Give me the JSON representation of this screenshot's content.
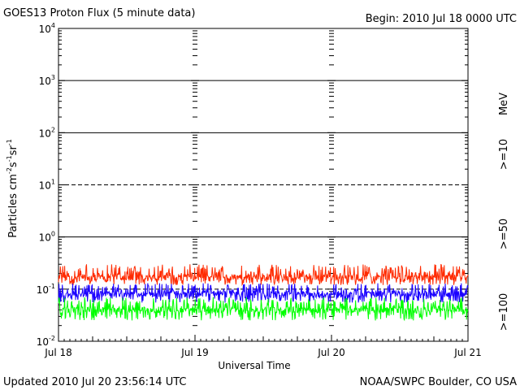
{
  "chart_data": {
    "type": "line",
    "title": "GOES13 Proton Flux (5 minute data)",
    "begin_label": "Begin: 2010 Jul 18 0000 UTC",
    "xlabel": "Universal Time",
    "ylabel": "Particles cm",
    "ylabel_sup1": "-2",
    "ylabel_mid1": "s",
    "ylabel_sup2": "-1",
    "ylabel_mid2": "sr",
    "ylabel_sup3": "-1",
    "y_scale": "log",
    "ylim": [
      0.01,
      10000
    ],
    "y_tick_labels": [
      {
        "value": 0.01,
        "base": "10",
        "exp": "-2"
      },
      {
        "value": 0.1,
        "base": "10",
        "exp": "-1"
      },
      {
        "value": 1,
        "base": "10",
        "exp": "0"
      },
      {
        "value": 10,
        "base": "10",
        "exp": "1"
      },
      {
        "value": 100,
        "base": "10",
        "exp": "2"
      },
      {
        "value": 1000,
        "base": "10",
        "exp": "3"
      },
      {
        "value": 10000,
        "base": "10",
        "exp": "4"
      }
    ],
    "x_tick_labels": [
      "Jul 18",
      "Jul 19",
      "Jul 20",
      "Jul 21"
    ],
    "xlim_days": [
      0,
      3
    ],
    "threshold_lines": [
      {
        "value": 1000,
        "style": "solid"
      },
      {
        "value": 100,
        "style": "solid"
      },
      {
        "value": 10,
        "style": "dashed"
      },
      {
        "value": 1,
        "style": "solid"
      },
      {
        "value": 0.1,
        "style": "dashed"
      }
    ],
    "right_legend": {
      "unit": "MeV",
      "entries": [
        {
          "label": ">=10",
          "color": "#ff2a00"
        },
        {
          "label": ">=50",
          "color": "#1a00ff"
        },
        {
          "label": ">=100",
          "color": "#00ff00"
        }
      ]
    },
    "series": [
      {
        "name": ">=10",
        "color": "#ff2a00",
        "typical_range": [
          0.12,
          0.3
        ],
        "mean": 0.17
      },
      {
        "name": ">=50",
        "color": "#1a00ff",
        "typical_range": [
          0.055,
          0.13
        ],
        "mean": 0.08
      },
      {
        "name": ">=100",
        "color": "#00ff00",
        "typical_range": [
          0.025,
          0.07
        ],
        "mean": 0.04
      }
    ]
  },
  "footer": {
    "updated": "Updated 2010 Jul 20 23:56:14 UTC",
    "credit": "NOAA/SWPC Boulder, CO USA"
  }
}
